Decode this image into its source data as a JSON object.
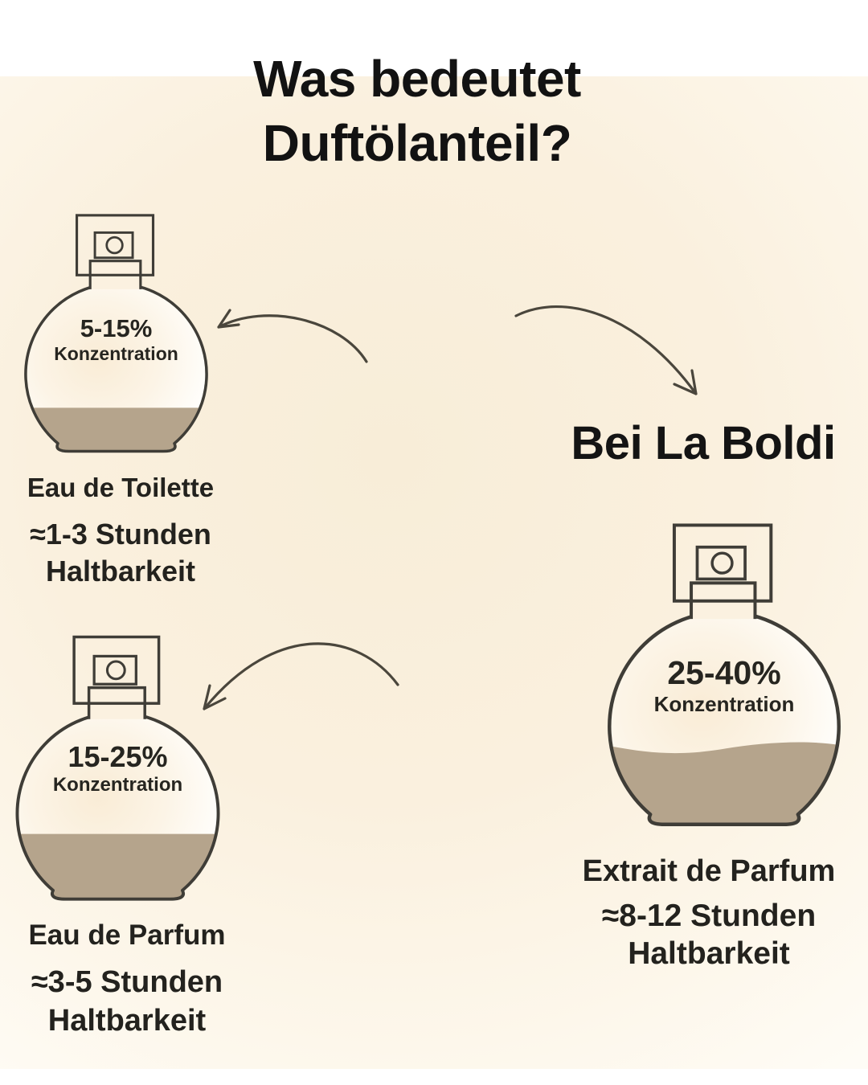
{
  "title": {
    "line1": "Was bedeutet",
    "line2": "Duftölanteil?"
  },
  "brand_note": "Bei La Boldi",
  "bottles": [
    {
      "name": "Eau de Toilette",
      "concentration": "5-15%",
      "concentration_label": "Konzentration",
      "duration": "≈1-3 Stunden",
      "durability_label": "Haltbarkeit",
      "fill_ratio": 0.26
    },
    {
      "name": "Eau de Parfum",
      "concentration": "15-25%",
      "concentration_label": "Konzentration",
      "duration": "≈3-5 Stunden",
      "durability_label": "Haltbarkeit",
      "fill_ratio": 0.35
    },
    {
      "name": "Extrait de Parfum",
      "concentration": "25-40%",
      "concentration_label": "Konzentration",
      "duration": "≈8-12 Stunden",
      "durability_label": "Haltbarkeit",
      "fill_ratio": 0.39
    }
  ],
  "icons": {
    "arrows": [
      "curved-arrow-down-right",
      "curved-arrow-left",
      "curved-arrow-down-left"
    ],
    "bottle": "perfume-spray-bottle-icon"
  },
  "colors": {
    "liquid": "#b5a48c",
    "outline": "#3f3d37",
    "background_cream": "#fbf1e0",
    "text": "#22211e"
  }
}
